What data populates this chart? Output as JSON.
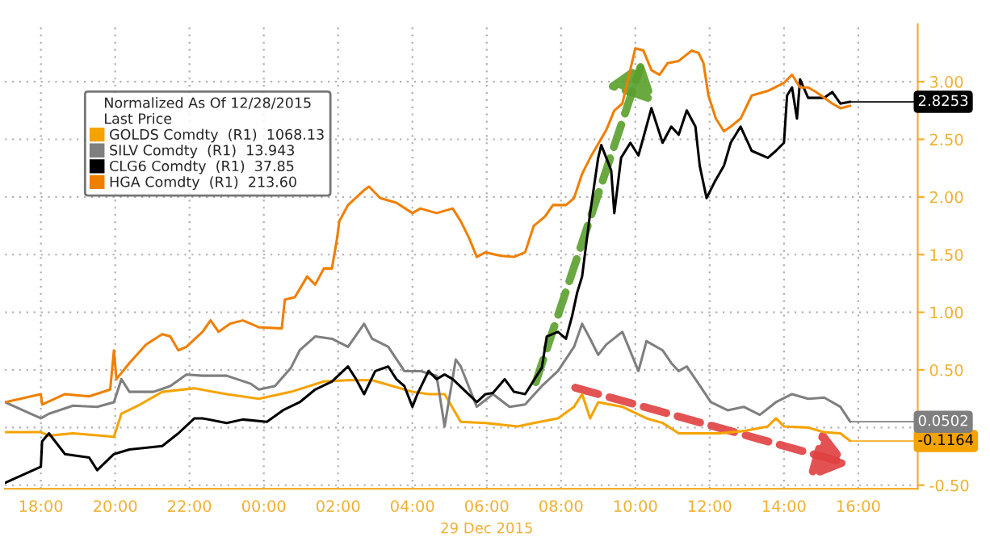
{
  "chart_data": {
    "type": "line",
    "legend_title": "Normalized As Of 12/28/2015\nLast Price",
    "xlabel": "29 Dec 2015",
    "xlim": [
      "2015-12-28T17:02",
      "2015-12-29T17:36"
    ],
    "ylim": [
      -0.53,
      3.5
    ],
    "xticks": [
      {
        "value": "2015-12-28T18:00",
        "label": "18:00"
      },
      {
        "value": "2015-12-28T20:00",
        "label": "20:00"
      },
      {
        "value": "2015-12-28T22:00",
        "label": "22:00"
      },
      {
        "value": "2015-12-29T00:00",
        "label": "00:00"
      },
      {
        "value": "2015-12-29T02:00",
        "label": "02:00"
      },
      {
        "value": "2015-12-29T04:00",
        "label": "04:00"
      },
      {
        "value": "2015-12-29T06:00",
        "label": "06:00"
      },
      {
        "value": "2015-12-29T08:00",
        "label": "08:00"
      },
      {
        "value": "2015-12-29T10:00",
        "label": "10:00"
      },
      {
        "value": "2015-12-29T12:00",
        "label": "12:00"
      },
      {
        "value": "2015-12-29T14:00",
        "label": "14:00"
      },
      {
        "value": "2015-12-29T16:00",
        "label": "16:00"
      }
    ],
    "yticks": [
      {
        "value": -0.5,
        "label": "-0.50"
      },
      {
        "value": 0,
        "label": null
      },
      {
        "value": 0.5,
        "label": "0.50"
      },
      {
        "value": 1.0,
        "label": "1.00"
      },
      {
        "value": 1.5,
        "label": "1.50"
      },
      {
        "value": 2.0,
        "label": "2.00"
      },
      {
        "value": 2.5,
        "label": "2.50"
      },
      {
        "value": 3.0,
        "label": "3.00"
      }
    ],
    "grid": true,
    "legend": "top left",
    "series": [
      {
        "name": "GOLDS Comdty  (R1)  1068.13",
        "color": "#f5a300",
        "x": [
          "2015-12-28T17:02",
          "2015-12-28T18:00",
          "2015-12-28T18:13",
          "2015-12-28T18:52",
          "2015-12-28T19:58",
          "2015-12-28T20:10",
          "2015-12-28T20:37",
          "2015-12-28T21:16",
          "2015-12-28T22:08",
          "2015-12-28T23:00",
          "2015-12-28T23:52",
          "2015-12-29T00:44",
          "2015-12-29T01:37",
          "2015-12-29T02:16",
          "2015-12-29T02:55",
          "2015-12-29T04:00",
          "2015-12-29T04:26",
          "2015-12-29T04:52",
          "2015-12-29T05:18",
          "2015-12-29T05:58",
          "2015-12-29T06:50",
          "2015-12-29T07:16",
          "2015-12-29T07:55",
          "2015-12-29T08:21",
          "2015-12-29T08:34",
          "2015-12-29T08:47",
          "2015-12-29T09:00",
          "2015-12-29T09:39",
          "2015-12-29T10:18",
          "2015-12-29T10:44",
          "2015-12-29T11:10",
          "2015-12-29T11:50",
          "2015-12-29T12:16",
          "2015-12-29T12:55",
          "2015-12-29T13:34",
          "2015-12-29T13:47",
          "2015-12-29T14:00",
          "2015-12-29T14:39",
          "2015-12-29T15:05",
          "2015-12-29T15:31",
          "2015-12-29T15:47"
        ],
        "values": [
          -0.04,
          -0.04,
          -0.07,
          -0.05,
          -0.08,
          0.12,
          0.19,
          0.31,
          0.34,
          0.29,
          0.25,
          0.31,
          0.4,
          0.41,
          0.41,
          0.31,
          0.29,
          0.29,
          0.05,
          0.04,
          0.01,
          0.04,
          0.08,
          0.18,
          0.29,
          0.08,
          0.22,
          0.18,
          0.08,
          0.04,
          -0.05,
          -0.05,
          -0.05,
          -0.03,
          0.01,
          0.08,
          0.01,
          0.0,
          -0.04,
          -0.05,
          -0.1164
        ],
        "value_labels": [
          null,
          null,
          null,
          null,
          null,
          null,
          null,
          null,
          null,
          null,
          null,
          null,
          null,
          null,
          null,
          null,
          null,
          null,
          null,
          null,
          null,
          null,
          null,
          null,
          null,
          null,
          null,
          null,
          null,
          null,
          null,
          null,
          null,
          null,
          null,
          null,
          null,
          null,
          null,
          null,
          "-0.1164"
        ]
      },
      {
        "name": "SILV Comdty  (R1)  13.943",
        "color": "#7f7f7f",
        "x": [
          "2015-12-28T17:02",
          "2015-12-28T18:00",
          "2015-12-28T18:13",
          "2015-12-28T18:52",
          "2015-12-28T19:31",
          "2015-12-28T19:58",
          "2015-12-28T20:10",
          "2015-12-28T20:23",
          "2015-12-28T21:02",
          "2015-12-28T21:29",
          "2015-12-28T21:55",
          "2015-12-28T22:21",
          "2015-12-28T23:00",
          "2015-12-28T23:39",
          "2015-12-28T23:52",
          "2015-12-29T00:18",
          "2015-12-29T00:44",
          "2015-12-29T00:58",
          "2015-12-29T01:23",
          "2015-12-29T01:50",
          "2015-12-29T02:16",
          "2015-12-29T02:42",
          "2015-12-29T02:55",
          "2015-12-29T03:21",
          "2015-12-29T03:47",
          "2015-12-29T04:13",
          "2015-12-29T04:39",
          "2015-12-29T04:52",
          "2015-12-29T05:10",
          "2015-12-29T05:18",
          "2015-12-29T05:44",
          "2015-12-29T06:10",
          "2015-12-29T06:37",
          "2015-12-29T07:02",
          "2015-12-29T07:29",
          "2015-12-29T07:55",
          "2015-12-29T08:21",
          "2015-12-29T08:34",
          "2015-12-29T08:47",
          "2015-12-29T09:00",
          "2015-12-29T09:13",
          "2015-12-29T09:39",
          "2015-12-29T10:05",
          "2015-12-29T10:18",
          "2015-12-29T10:44",
          "2015-12-29T10:58",
          "2015-12-29T11:10",
          "2015-12-29T11:23",
          "2015-12-29T11:37",
          "2015-12-29T12:02",
          "2015-12-29T12:29",
          "2015-12-29T12:55",
          "2015-12-29T13:21",
          "2015-12-29T13:47",
          "2015-12-29T14:13",
          "2015-12-29T14:39",
          "2015-12-29T15:05",
          "2015-12-29T15:31",
          "2015-12-29T15:47"
        ],
        "values": [
          0.22,
          0.08,
          0.12,
          0.19,
          0.18,
          0.22,
          0.42,
          0.31,
          0.31,
          0.36,
          0.46,
          0.45,
          0.45,
          0.38,
          0.33,
          0.36,
          0.52,
          0.67,
          0.79,
          0.77,
          0.7,
          0.9,
          0.77,
          0.7,
          0.49,
          0.49,
          0.45,
          0.01,
          0.59,
          0.53,
          0.18,
          0.29,
          0.18,
          0.2,
          0.36,
          0.49,
          0.7,
          0.9,
          0.77,
          0.63,
          0.72,
          0.83,
          0.49,
          0.75,
          0.67,
          0.56,
          0.49,
          0.53,
          0.42,
          0.22,
          0.15,
          0.18,
          0.11,
          0.22,
          0.29,
          0.25,
          0.26,
          0.18,
          0.0502
        ],
        "value_labels": [
          null,
          null,
          null,
          null,
          null,
          null,
          null,
          null,
          null,
          null,
          null,
          null,
          null,
          null,
          null,
          null,
          null,
          null,
          null,
          null,
          null,
          null,
          null,
          null,
          null,
          null,
          null,
          null,
          null,
          null,
          null,
          null,
          null,
          null,
          null,
          null,
          null,
          null,
          null,
          null,
          null,
          null,
          null,
          null,
          null,
          null,
          null,
          null,
          null,
          null,
          null,
          null,
          null,
          null,
          null,
          null,
          null,
          null,
          "0.0502"
        ]
      },
      {
        "name": "CLG6 Comdty  (R1)  37.85",
        "color": "#000000",
        "x": [
          "2015-12-28T17:02",
          "2015-12-28T18:00",
          "2015-12-28T18:02",
          "2015-12-28T18:13",
          "2015-12-28T18:39",
          "2015-12-28T19:18",
          "2015-12-28T19:31",
          "2015-12-28T19:58",
          "2015-12-28T20:23",
          "2015-12-28T21:16",
          "2015-12-28T21:42",
          "2015-12-28T22:08",
          "2015-12-28T22:21",
          "2015-12-28T23:00",
          "2015-12-28T23:26",
          "2015-12-29T00:05",
          "2015-12-29T00:31",
          "2015-12-29T00:58",
          "2015-12-29T01:23",
          "2015-12-29T01:50",
          "2015-12-29T02:16",
          "2015-12-29T02:29",
          "2015-12-29T02:42",
          "2015-12-29T03:00",
          "2015-12-29T03:21",
          "2015-12-29T03:34",
          "2015-12-29T03:47",
          "2015-12-29T04:00",
          "2015-12-29T04:08",
          "2015-12-29T04:26",
          "2015-12-29T04:39",
          "2015-12-29T04:52",
          "2015-12-29T05:05",
          "2015-12-29T05:44",
          "2015-12-29T05:58",
          "2015-12-29T06:10",
          "2015-12-29T06:29",
          "2015-12-29T06:44",
          "2015-12-29T07:02",
          "2015-12-29T07:29",
          "2015-12-29T07:37",
          "2015-12-29T07:55",
          "2015-12-29T08:08",
          "2015-12-29T08:18",
          "2015-12-29T08:26",
          "2015-12-29T08:34",
          "2015-12-29T08:47",
          "2015-12-29T09:00",
          "2015-12-29T09:05",
          "2015-12-29T09:13",
          "2015-12-29T09:21",
          "2015-12-29T09:26",
          "2015-12-29T09:37",
          "2015-12-29T09:52",
          "2015-12-29T10:05",
          "2015-12-29T10:26",
          "2015-12-29T10:44",
          "2015-12-29T10:58",
          "2015-12-29T11:10",
          "2015-12-29T11:23",
          "2015-12-29T11:37",
          "2015-12-29T11:44",
          "2015-12-29T11:55",
          "2015-12-29T12:08",
          "2015-12-29T12:23",
          "2015-12-29T12:34",
          "2015-12-29T12:50",
          "2015-12-29T13:08",
          "2015-12-29T13:34",
          "2015-12-29T13:47",
          "2015-12-29T14:00",
          "2015-12-29T14:05",
          "2015-12-29T14:13",
          "2015-12-29T14:21",
          "2015-12-29T14:26",
          "2015-12-29T14:39",
          "2015-12-29T15:05",
          "2015-12-29T15:18",
          "2015-12-29T15:31",
          "2015-12-29T15:47"
        ],
        "values": [
          -0.48,
          -0.34,
          -0.12,
          -0.05,
          -0.23,
          -0.26,
          -0.37,
          -0.23,
          -0.19,
          -0.16,
          -0.05,
          0.08,
          0.08,
          0.04,
          0.07,
          0.05,
          0.15,
          0.22,
          0.33,
          0.4,
          0.53,
          0.42,
          0.29,
          0.49,
          0.53,
          0.42,
          0.36,
          0.18,
          0.29,
          0.49,
          0.42,
          0.46,
          0.42,
          0.22,
          0.29,
          0.3,
          0.42,
          0.31,
          0.29,
          0.52,
          0.79,
          0.83,
          0.77,
          0.97,
          1.17,
          1.31,
          1.86,
          2.34,
          2.45,
          2.34,
          2.23,
          1.86,
          2.34,
          2.47,
          2.36,
          2.77,
          2.47,
          2.61,
          2.54,
          2.75,
          2.61,
          2.27,
          1.99,
          2.13,
          2.27,
          2.47,
          2.61,
          2.4,
          2.34,
          2.4,
          2.47,
          2.88,
          2.95,
          2.68,
          3.02,
          2.86,
          2.86,
          2.91,
          2.81,
          2.8253
        ],
        "value_labels": [
          null,
          null,
          null,
          null,
          null,
          null,
          null,
          null,
          null,
          null,
          null,
          null,
          null,
          null,
          null,
          null,
          null,
          null,
          null,
          null,
          null,
          null,
          null,
          null,
          null,
          null,
          null,
          null,
          null,
          null,
          null,
          null,
          null,
          null,
          null,
          null,
          null,
          null,
          null,
          null,
          null,
          null,
          null,
          null,
          null,
          null,
          null,
          null,
          null,
          null,
          null,
          null,
          null,
          null,
          null,
          null,
          null,
          null,
          null,
          null,
          null,
          null,
          null,
          null,
          null,
          null,
          null,
          null,
          null,
          null,
          null,
          null,
          null,
          null,
          null,
          null,
          null,
          null,
          null,
          "2.8253"
        ]
      },
      {
        "name": "HGA Comdty  (R1)  213.60",
        "color": "#f07f00",
        "x": [
          "2015-12-28T17:02",
          "2015-12-28T18:00",
          "2015-12-28T18:02",
          "2015-12-28T18:39",
          "2015-12-28T19:18",
          "2015-12-28T19:52",
          "2015-12-28T19:58",
          "2015-12-28T20:02",
          "2015-12-28T20:23",
          "2015-12-28T20:50",
          "2015-12-28T21:16",
          "2015-12-28T21:29",
          "2015-12-28T21:42",
          "2015-12-28T21:55",
          "2015-12-28T22:21",
          "2015-12-28T22:34",
          "2015-12-28T22:47",
          "2015-12-28T23:05",
          "2015-12-28T23:26",
          "2015-12-28T23:52",
          "2015-12-29T00:29",
          "2015-12-29T00:34",
          "2015-12-29T00:50",
          "2015-12-29T01:10",
          "2015-12-29T01:23",
          "2015-12-29T01:37",
          "2015-12-29T01:50",
          "2015-12-29T01:58",
          "2015-12-29T02:02",
          "2015-12-29T02:16",
          "2015-12-29T02:42",
          "2015-12-29T02:50",
          "2015-12-29T03:08",
          "2015-12-29T03:34",
          "2015-12-29T04:00",
          "2015-12-29T04:13",
          "2015-12-29T04:39",
          "2015-12-29T05:05",
          "2015-12-29T05:18",
          "2015-12-29T05:31",
          "2015-12-29T05:44",
          "2015-12-29T05:58",
          "2015-12-29T06:23",
          "2015-12-29T06:44",
          "2015-12-29T07:02",
          "2015-12-29T07:16",
          "2015-12-29T07:34",
          "2015-12-29T07:47",
          "2015-12-29T08:08",
          "2015-12-29T08:21",
          "2015-12-29T08:34",
          "2015-12-29T08:47",
          "2015-12-29T09:13",
          "2015-12-29T09:26",
          "2015-12-29T09:39",
          "2015-12-29T10:00",
          "2015-12-29T10:13",
          "2015-12-29T10:26",
          "2015-12-29T10:39",
          "2015-12-29T10:52",
          "2015-12-29T11:10",
          "2015-12-29T11:31",
          "2015-12-29T11:42",
          "2015-12-29T11:50",
          "2015-12-29T11:58",
          "2015-12-29T12:10",
          "2015-12-29T12:23",
          "2015-12-29T12:34",
          "2015-12-29T12:50",
          "2015-12-29T13:08",
          "2015-12-29T13:34",
          "2015-12-29T14:00",
          "2015-12-29T14:13",
          "2015-12-29T14:26",
          "2015-12-29T14:39",
          "2015-12-29T14:52",
          "2015-12-29T15:18",
          "2015-12-29T15:31",
          "2015-12-29T15:47"
        ],
        "values": [
          0.22,
          0.29,
          0.2,
          0.29,
          0.27,
          0.33,
          0.67,
          0.42,
          0.56,
          0.72,
          0.81,
          0.79,
          0.67,
          0.7,
          0.83,
          0.93,
          0.83,
          0.9,
          0.93,
          0.87,
          0.86,
          1.11,
          1.13,
          1.31,
          1.24,
          1.38,
          1.38,
          1.63,
          1.79,
          1.93,
          2.06,
          2.09,
          1.99,
          1.95,
          1.86,
          1.9,
          1.86,
          1.9,
          1.79,
          1.65,
          1.48,
          1.52,
          1.49,
          1.48,
          1.52,
          1.75,
          1.83,
          1.93,
          1.93,
          1.99,
          2.2,
          2.34,
          2.58,
          2.75,
          2.81,
          3.29,
          3.27,
          3.1,
          3.06,
          3.16,
          3.18,
          3.27,
          3.25,
          3.16,
          2.88,
          2.68,
          2.57,
          2.61,
          2.68,
          2.88,
          2.92,
          2.99,
          3.06,
          2.95,
          2.95,
          2.91,
          2.81,
          2.77,
          2.79
        ]
      }
    ]
  }
}
